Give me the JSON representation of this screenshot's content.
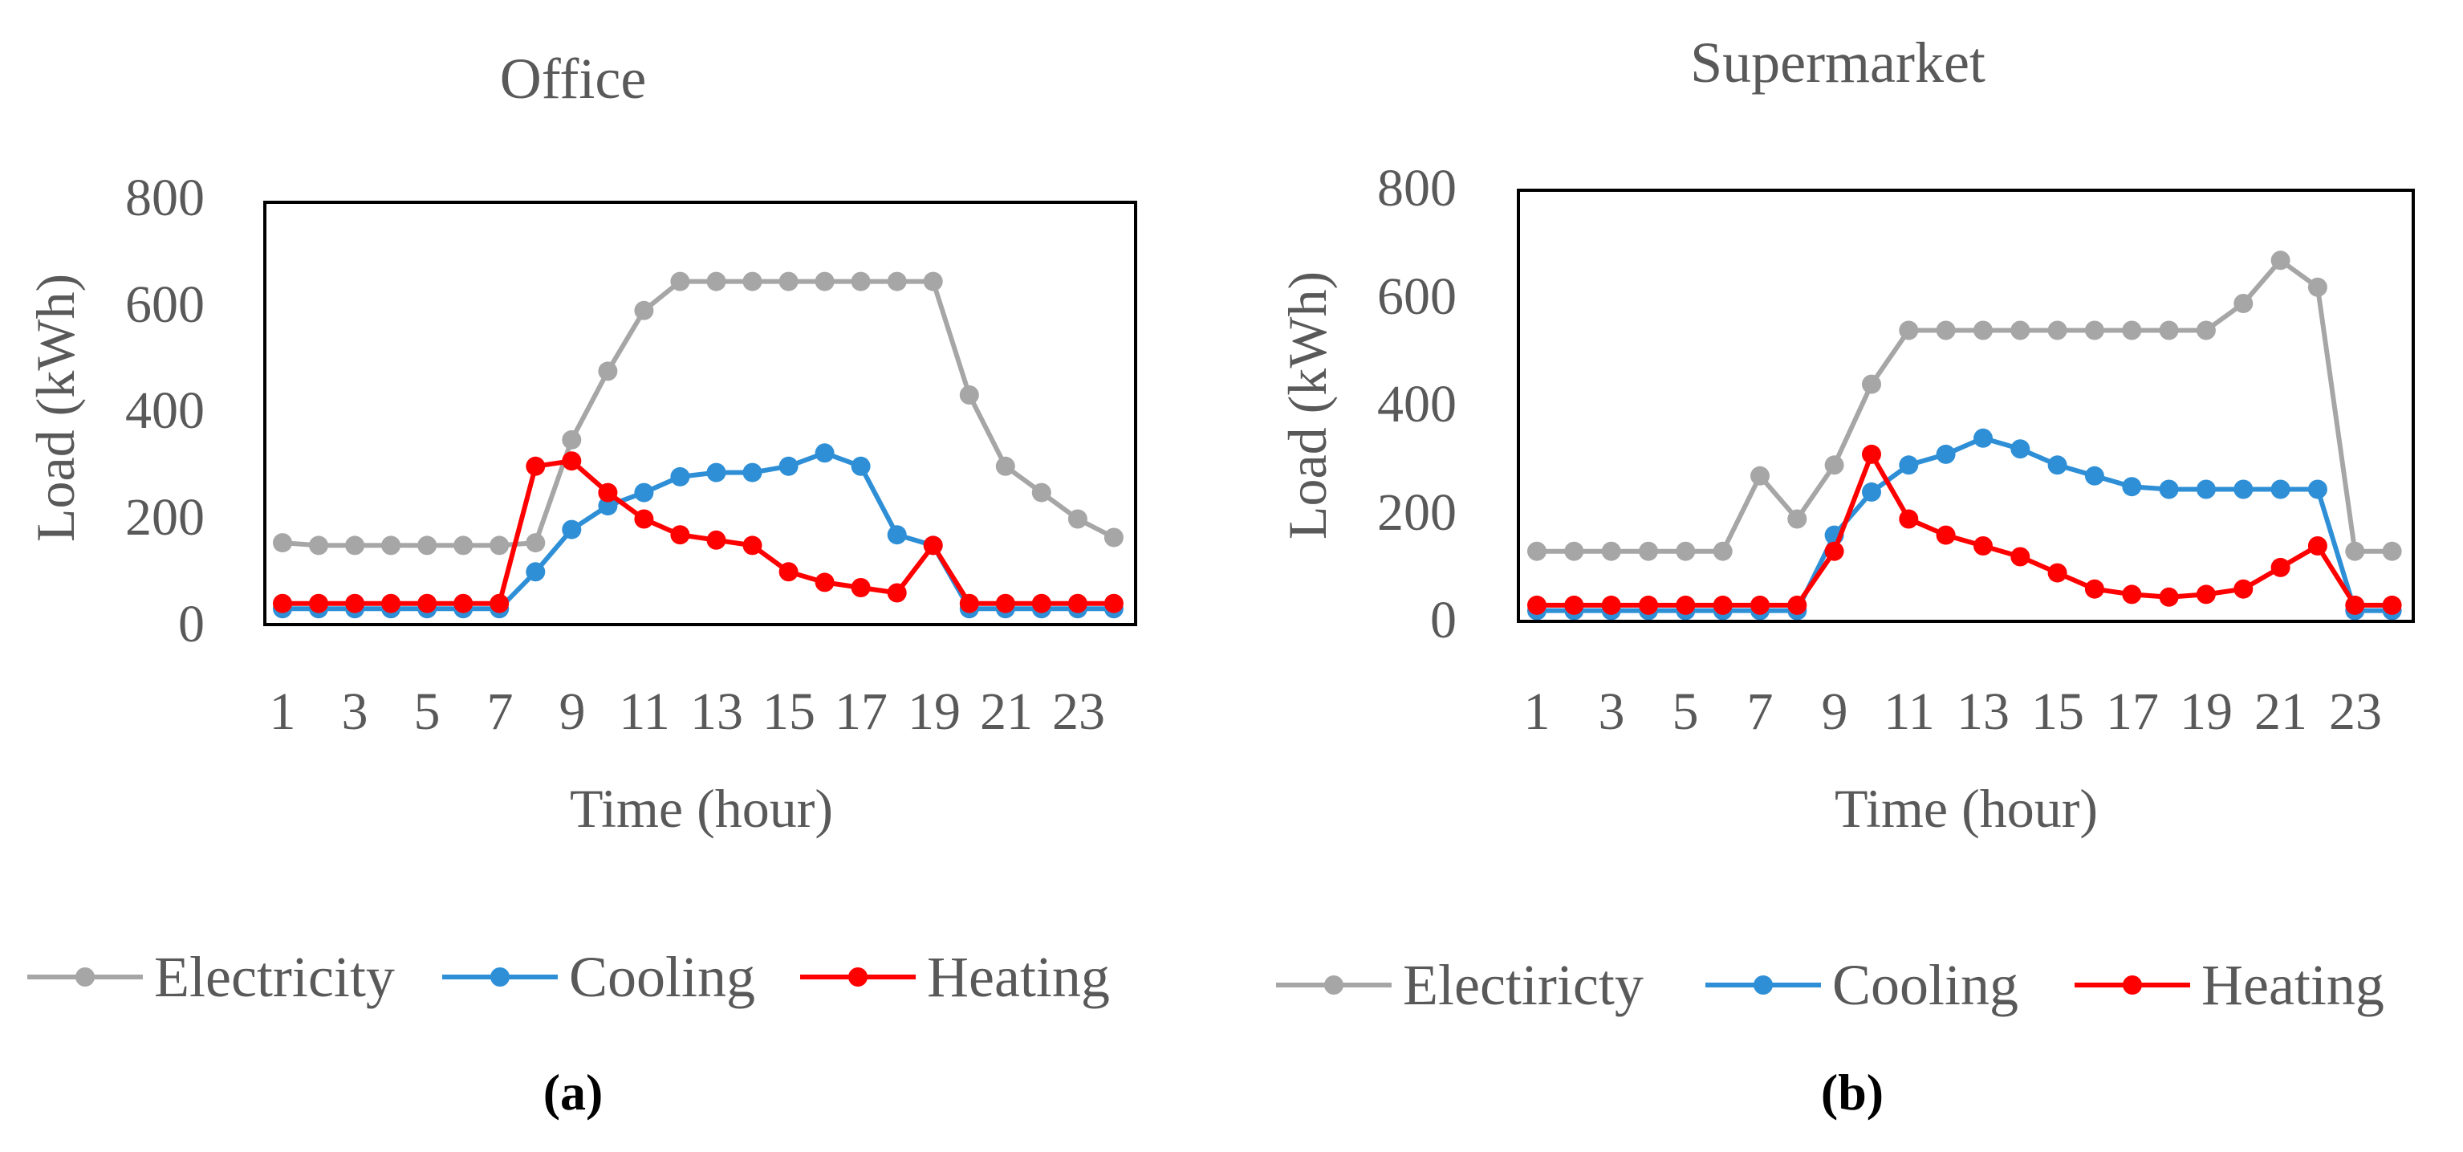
{
  "colors": {
    "electricity": "#a6a6a6",
    "cooling": "#2e8fd6",
    "heating": "#ff0000",
    "text": "#595959"
  },
  "chart_data": [
    {
      "type": "line",
      "title": "Office",
      "panel_label": "(a)",
      "xlabel": "Time (hour)",
      "ylabel": "Load (kWh)",
      "ylim": [
        0,
        800
      ],
      "yticks": [
        "0",
        "200",
        "400",
        "600",
        "800"
      ],
      "xticks": [
        "1",
        "3",
        "5",
        "7",
        "9",
        "11",
        "13",
        "15",
        "17",
        "19",
        "21",
        "23"
      ],
      "x": [
        1,
        2,
        3,
        4,
        5,
        6,
        7,
        8,
        9,
        10,
        11,
        12,
        13,
        14,
        15,
        16,
        17,
        18,
        19,
        20,
        21,
        22,
        23,
        24
      ],
      "series": [
        {
          "name": "Electricity",
          "key": "electricity",
          "values": [
            155,
            150,
            150,
            150,
            150,
            150,
            150,
            155,
            350,
            480,
            595,
            650,
            650,
            650,
            650,
            650,
            650,
            650,
            650,
            435,
            300,
            250,
            200,
            165
          ]
        },
        {
          "name": "Cooling",
          "key": "cooling",
          "values": [
            30,
            30,
            30,
            30,
            30,
            30,
            30,
            100,
            180,
            225,
            250,
            280,
            288,
            288,
            300,
            325,
            300,
            170,
            150,
            30,
            30,
            30,
            30,
            30
          ]
        },
        {
          "name": "Heating",
          "key": "heating",
          "values": [
            40,
            40,
            40,
            40,
            40,
            40,
            40,
            300,
            310,
            250,
            200,
            170,
            160,
            150,
            100,
            80,
            70,
            60,
            150,
            40,
            40,
            40,
            40,
            40
          ]
        }
      ],
      "legend": [
        "Electricity",
        "Cooling",
        "Heating"
      ]
    },
    {
      "type": "line",
      "title": "Supermarket",
      "panel_label": "(b)",
      "xlabel": "Time (hour)",
      "ylabel": "Load (kWh)",
      "ylim": [
        0,
        800
      ],
      "yticks": [
        "0",
        "200",
        "400",
        "600",
        "800"
      ],
      "xticks": [
        "1",
        "3",
        "5",
        "7",
        "9",
        "11",
        "13",
        "15",
        "17",
        "19",
        "21",
        "23"
      ],
      "x": [
        1,
        2,
        3,
        4,
        5,
        6,
        7,
        8,
        9,
        10,
        11,
        12,
        13,
        14,
        15,
        16,
        17,
        18,
        19,
        20,
        21,
        22,
        23,
        24
      ],
      "series": [
        {
          "name": "Electiricty",
          "key": "electricity",
          "values": [
            130,
            130,
            130,
            130,
            130,
            130,
            270,
            190,
            290,
            440,
            540,
            540,
            540,
            540,
            540,
            540,
            540,
            540,
            540,
            590,
            670,
            620,
            130,
            130
          ]
        },
        {
          "name": "Cooling",
          "key": "cooling",
          "values": [
            20,
            20,
            20,
            20,
            20,
            20,
            20,
            20,
            160,
            240,
            290,
            310,
            340,
            320,
            290,
            270,
            250,
            245,
            245,
            245,
            245,
            245,
            20,
            20
          ]
        },
        {
          "name": "Heating",
          "key": "heating",
          "values": [
            30,
            30,
            30,
            30,
            30,
            30,
            30,
            30,
            130,
            310,
            190,
            160,
            140,
            120,
            90,
            60,
            50,
            45,
            50,
            60,
            100,
            140,
            30,
            30
          ]
        }
      ],
      "legend": [
        "Electiricty",
        "Cooling",
        "Heating"
      ]
    }
  ]
}
